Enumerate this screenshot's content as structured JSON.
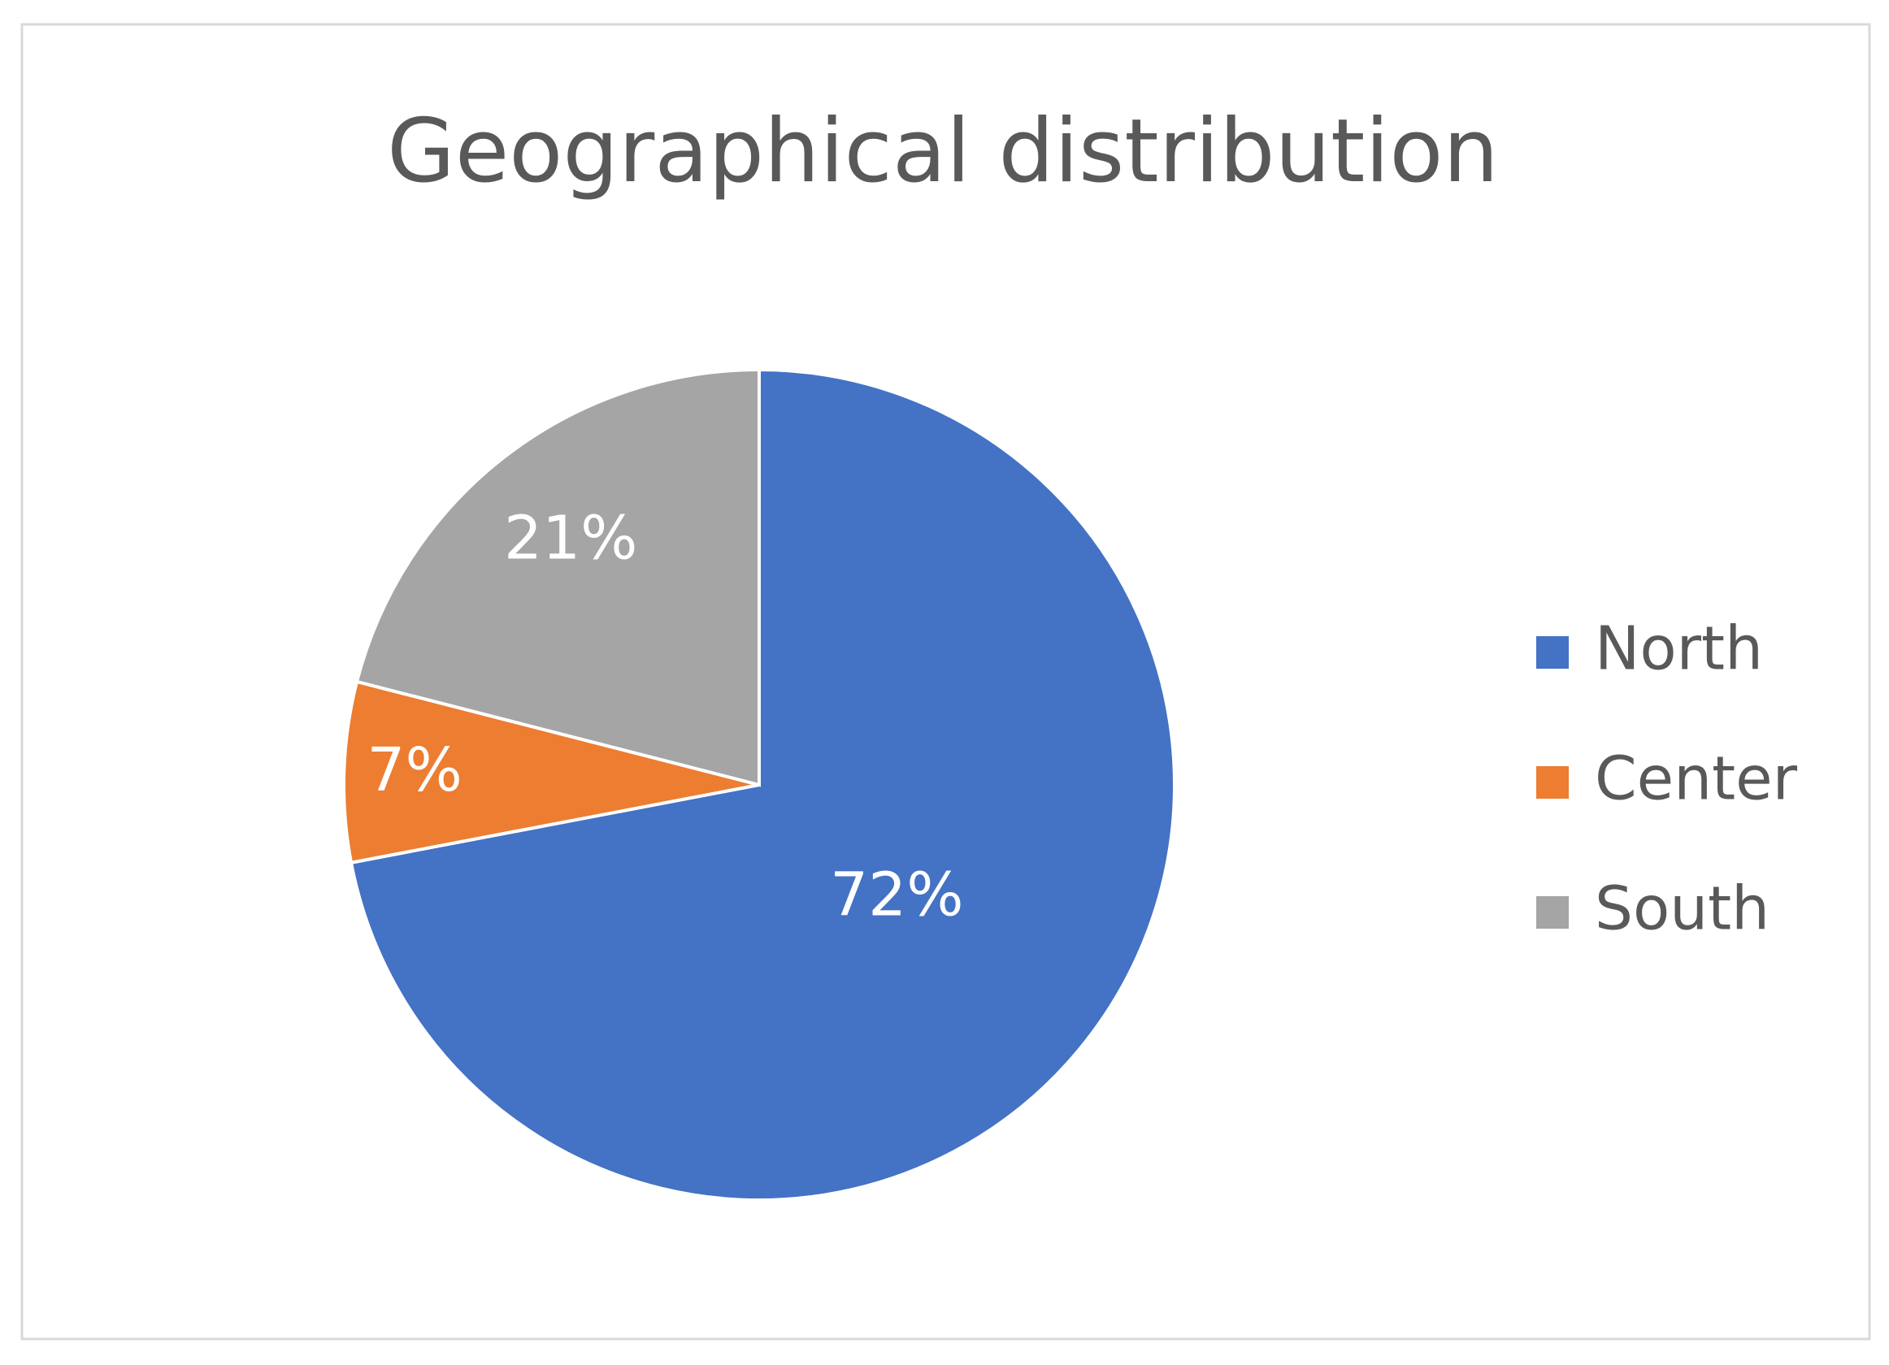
{
  "chart_data": {
    "type": "pie",
    "title": "Geographical distribution",
    "categories": [
      "North",
      "Center",
      "South"
    ],
    "values": [
      72,
      7,
      21
    ],
    "value_labels": [
      "72%",
      "7%",
      "21%"
    ],
    "colors": [
      "#4472c4",
      "#ed7d31",
      "#a5a5a5"
    ],
    "legend": "right"
  }
}
